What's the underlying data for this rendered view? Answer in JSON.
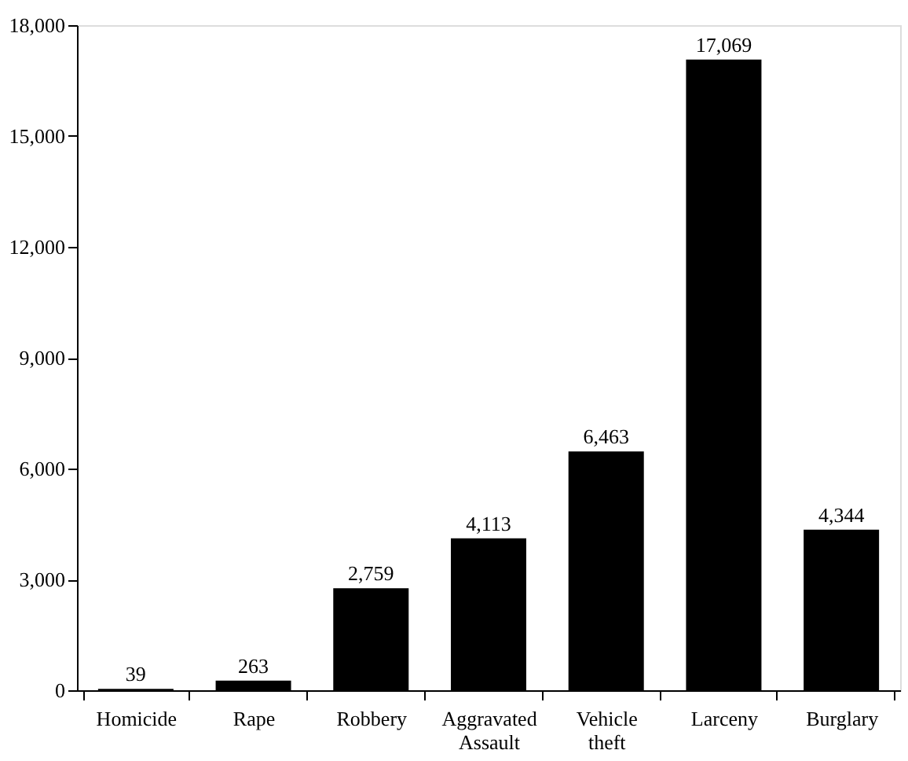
{
  "chart_data": {
    "type": "bar",
    "categories": [
      "Homicide",
      "Rape",
      "Robbery",
      "Aggravated Assault",
      "Vehicle theft",
      "Larceny",
      "Burglary"
    ],
    "values": [
      39,
      263,
      2759,
      4113,
      6463,
      17069,
      4344
    ],
    "value_labels": [
      "39",
      "263",
      "2,759",
      "4,113",
      "6,463",
      "17,069",
      "4,344"
    ],
    "color": "#000000",
    "ylim": [
      0,
      18000
    ],
    "yticks": [
      0,
      {
        "value": 3000,
        "label": "3,000"
      },
      {
        "value": 6000,
        "label": "6,000"
      },
      {
        "value": 9000,
        "label": "9,000"
      },
      {
        "value": 12000,
        "label": "12,000"
      },
      {
        "value": 15000,
        "label": "15,000"
      },
      {
        "value": 18000,
        "label": "18,000"
      }
    ],
    "grid": false
  }
}
